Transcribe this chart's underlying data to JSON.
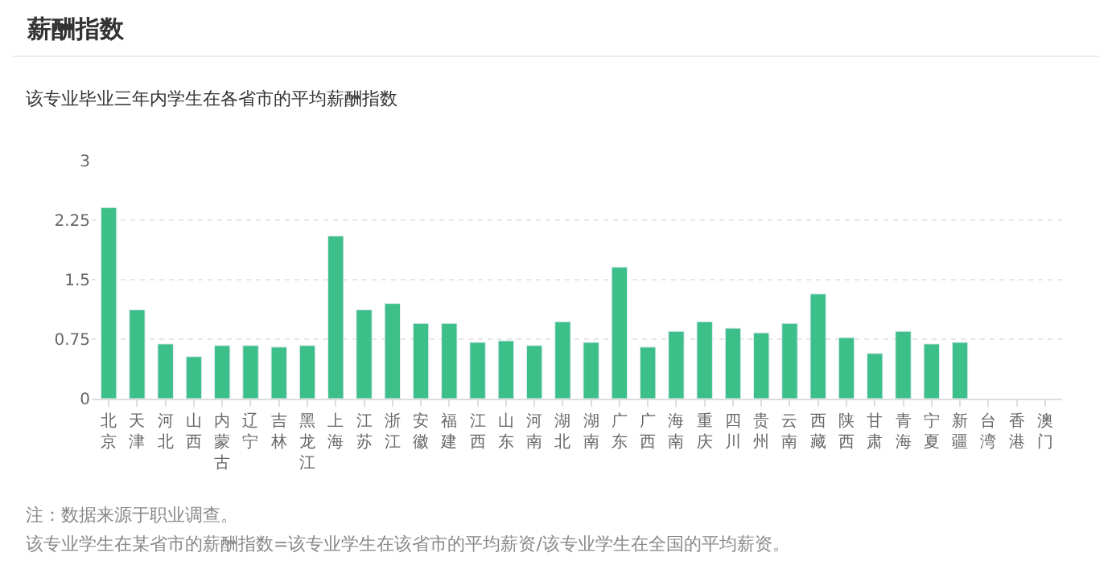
{
  "chart_data": {
    "type": "bar",
    "title": "薪酬指数",
    "subtitle": "该专业毕业三年内学生在各省市的平均薪酬指数",
    "categories": [
      "北京",
      "天津",
      "河北",
      "山西",
      "内蒙古",
      "辽宁",
      "吉林",
      "黑龙江",
      "上海",
      "江苏",
      "浙江",
      "安徽",
      "福建",
      "江西",
      "山东",
      "河南",
      "湖北",
      "湖南",
      "广东",
      "广西",
      "海南",
      "重庆",
      "四川",
      "贵州",
      "云南",
      "西藏",
      "陕西",
      "甘肃",
      "青海",
      "宁夏",
      "新疆",
      "台湾",
      "香港",
      "澳门"
    ],
    "values": [
      2.41,
      1.12,
      0.69,
      0.53,
      0.67,
      0.67,
      0.65,
      0.67,
      2.05,
      1.12,
      1.2,
      0.95,
      0.95,
      0.71,
      0.73,
      0.67,
      0.97,
      0.71,
      1.66,
      0.65,
      0.85,
      0.97,
      0.89,
      0.83,
      0.95,
      1.32,
      0.77,
      0.57,
      0.85,
      0.69,
      0.71,
      null,
      null,
      null
    ],
    "color": "#3dbf8a",
    "ylim": [
      0,
      3
    ],
    "yticks": [
      0,
      0.75,
      1.5,
      2.25,
      3
    ],
    "grid": "y",
    "legend": false,
    "annotations": [
      "注：数据来源于职业调查。",
      "该专业学生在某省市的薪酬指数=该专业学生在该省市的平均薪资/该专业学生在全国的平均薪资。"
    ]
  }
}
